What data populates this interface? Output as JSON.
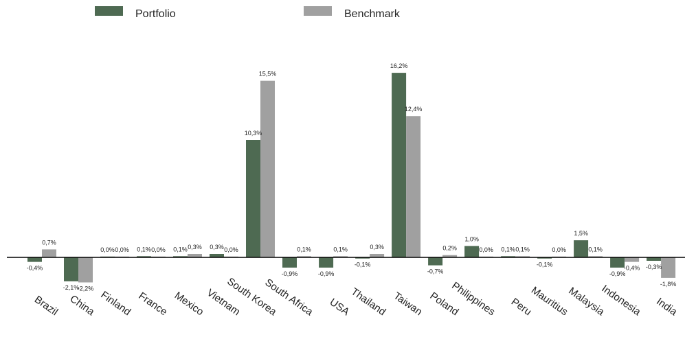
{
  "chart_data": {
    "type": "bar",
    "categories": [
      "Brazil",
      "China",
      "Finland",
      "France",
      "Mexico",
      "Vietnam",
      "South Korea",
      "South Africa",
      "USA",
      "Thailand",
      "Taiwan",
      "Poland",
      "Philippines",
      "Peru",
      "Mauritius",
      "Malaysia",
      "Indonesia",
      "India"
    ],
    "series": [
      {
        "name": "Portfolio",
        "color": "#4e6a52",
        "values": [
          -0.4,
          -2.1,
          0.0,
          0.1,
          0.1,
          0.3,
          10.3,
          -0.9,
          -0.9,
          -0.1,
          16.2,
          -0.7,
          1.0,
          0.1,
          -0.1,
          1.5,
          -0.9,
          -0.3
        ],
        "labels": [
          "-0,4%",
          "-2,1%",
          "0,0%",
          "0,1%",
          "0,1%",
          "0,3%",
          "10,3%",
          "-0,9%",
          "-0,9%",
          "-0,1%",
          "16,2%",
          "-0,7%",
          "1,0%",
          "0,1%",
          "-0,1%",
          "1,5%",
          "-0,9%",
          "-0,3%"
        ]
      },
      {
        "name": "Benchmark",
        "color": "#a0a0a0",
        "values": [
          0.7,
          -2.2,
          0.0,
          0.0,
          0.3,
          0.0,
          15.5,
          0.1,
          0.1,
          0.3,
          12.4,
          0.2,
          0.0,
          0.1,
          0.0,
          0.1,
          -0.4,
          -1.8
        ],
        "labels": [
          "0,7%",
          "-2,2%",
          "0,0%",
          "0,0%",
          "0,3%",
          "0,0%",
          "15,5%",
          "0,1%",
          "0,1%",
          "0,3%",
          "12,4%",
          "0,2%",
          "0,0%",
          "0,1%",
          "0,0%",
          "0,1%",
          "-0,4%",
          "-1,8%"
        ]
      }
    ],
    "ylim": [
      -2.5,
      17.0
    ],
    "grid": false,
    "legend": "top-left",
    "title": "",
    "xlabel": "",
    "ylabel": ""
  }
}
